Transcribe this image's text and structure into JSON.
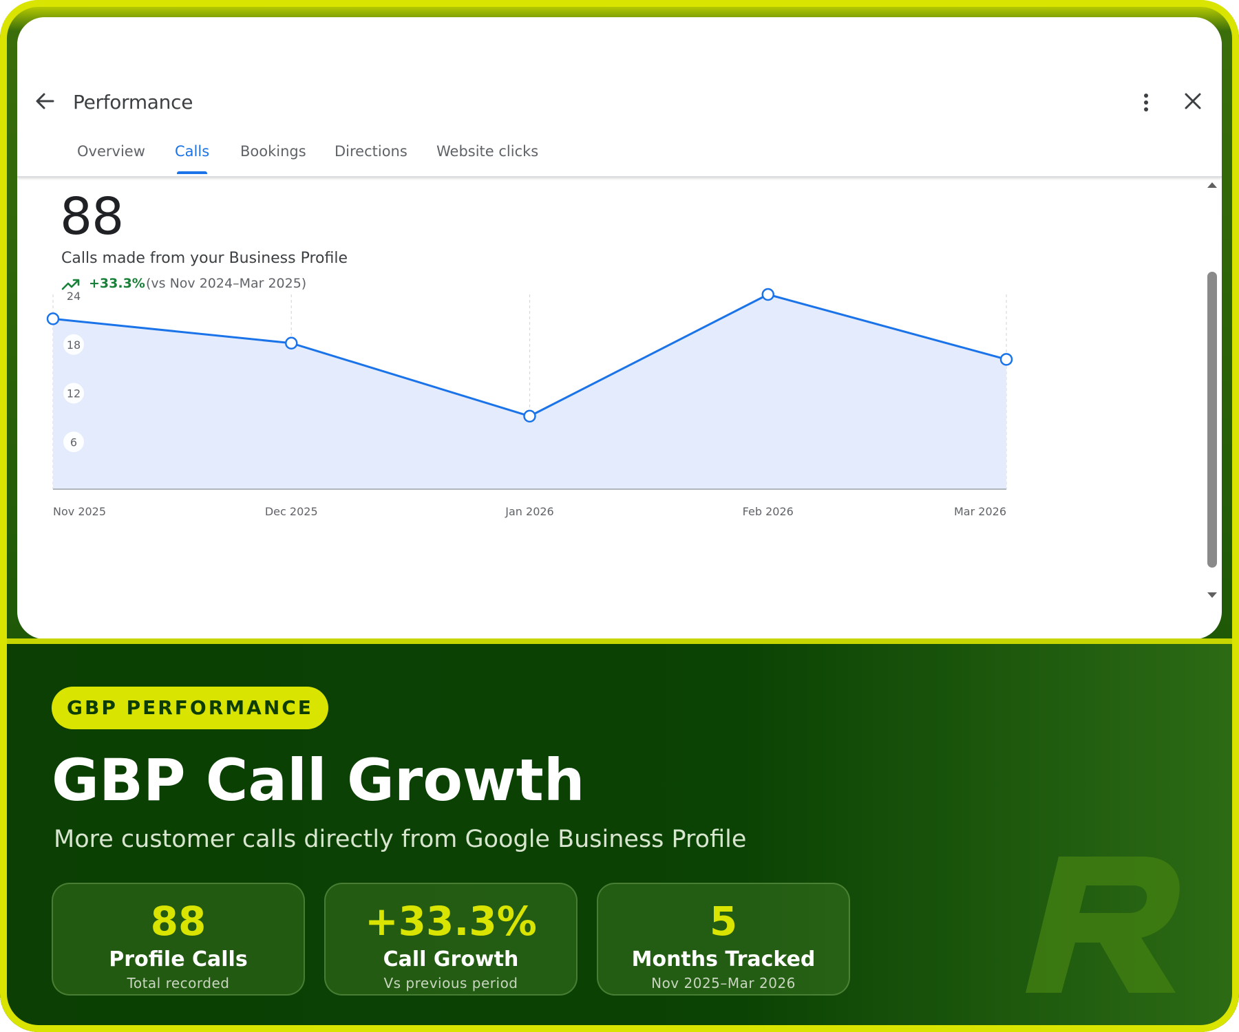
{
  "panel": {
    "title": "Performance",
    "tabs": [
      {
        "label": "Overview",
        "active": false
      },
      {
        "label": "Calls",
        "active": true
      },
      {
        "label": "Bookings",
        "active": false
      },
      {
        "label": "Directions",
        "active": false
      },
      {
        "label": "Website clicks",
        "active": false
      }
    ],
    "total_calls": "88",
    "description": "Calls made from your Business Profile",
    "trend_pct": "+33.3%",
    "trend_period": "(vs Nov 2024–Mar 2025)",
    "icons": {
      "back": "arrow-left-icon",
      "more": "more-vert-icon",
      "close": "close-icon",
      "trend": "trending-up-icon"
    },
    "colors": {
      "accent": "#1a73e8",
      "positive": "#188038",
      "area_fill": "#e3ebfc"
    }
  },
  "chart_data": {
    "type": "area",
    "categories": [
      "Nov 2025",
      "Dec 2025",
      "Jan 2026",
      "Feb 2026",
      "Mar 2026"
    ],
    "values": [
      21,
      18,
      9,
      24,
      16
    ],
    "y_ticks": [
      "24",
      "18",
      "12",
      "6"
    ],
    "ylim": [
      0,
      24
    ],
    "grid": "vertical dashed",
    "line_color": "#1a73e8",
    "fill_color": "#e3ebfc"
  },
  "promo": {
    "badge": "GBP PERFORMANCE",
    "headline": "GBP Call Growth",
    "subhead": "More customer calls directly from Google Business Profile",
    "stats": [
      {
        "value": "88",
        "label": "Profile Calls",
        "sub": "Total recorded"
      },
      {
        "value": "+33.3%",
        "label": "Call Growth",
        "sub": "Vs previous period"
      },
      {
        "value": "5",
        "label": "Months Tracked",
        "sub": "Nov 2025–Mar 2026"
      }
    ],
    "colors": {
      "accent": "#d9e400",
      "background": "#0b4304"
    },
    "logo_letter": "R"
  }
}
